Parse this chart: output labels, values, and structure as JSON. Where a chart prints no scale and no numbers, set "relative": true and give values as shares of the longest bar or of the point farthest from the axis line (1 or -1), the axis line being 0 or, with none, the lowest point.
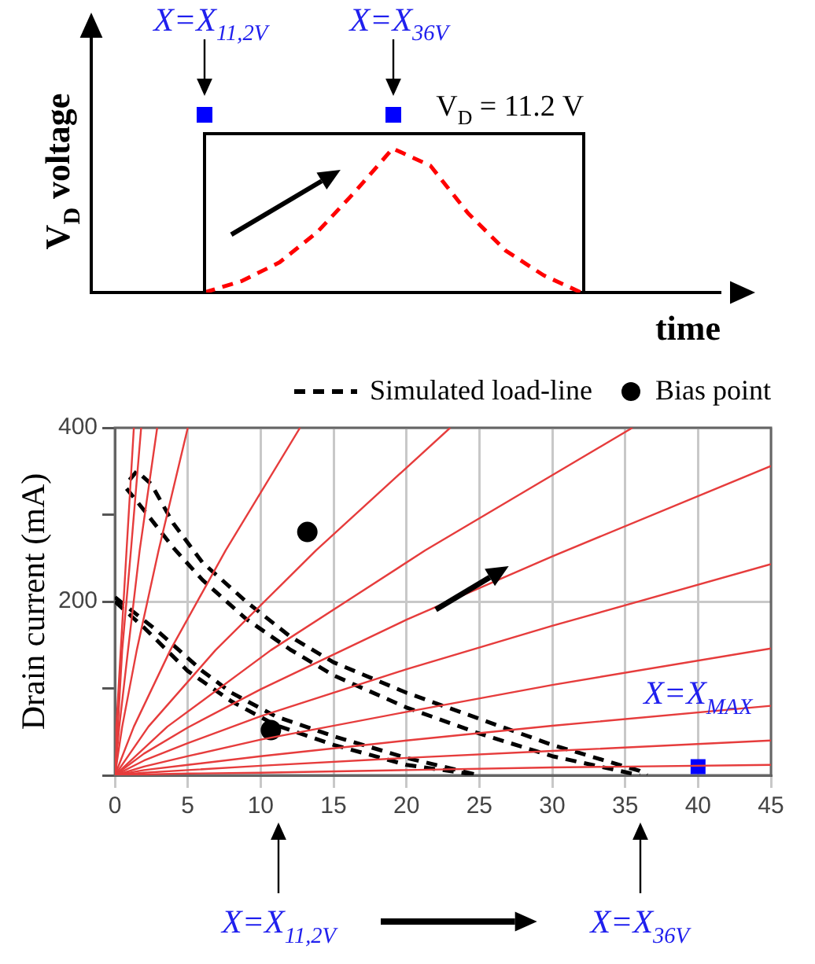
{
  "chart_data": [
    {
      "type": "line",
      "relative": true,
      "ylabel": "V$_{D}$ voltage",
      "xlabel": "time",
      "categories": [
        null,
        null,
        null,
        null,
        null,
        null,
        null,
        null,
        null,
        null,
        null
      ],
      "series": [
        {
          "color": "#ff0000",
          "line_style": "dashed",
          "values": [
            0,
            0.08,
            0.21,
            0.42,
            0.7,
            1,
            0.88,
            0.55,
            0.29,
            0.12,
            0
          ]
        }
      ],
      "annotations": [
        "X=X$_{11,2V}$",
        "X=X$_{36V}$",
        "V$_{D}$ = 11.2 V"
      ]
    },
    {
      "type": "line",
      "ylabel": "Drain current (mA)",
      "xlim": [
        0,
        45
      ],
      "xticks": [
        0,
        5,
        10,
        15,
        20,
        25,
        30,
        35,
        40,
        45
      ],
      "ylim": [
        0,
        400
      ],
      "yticks": [
        {
          "value": 0,
          "label": null
        },
        {
          "value": 100,
          "label": null
        },
        200,
        {
          "value": 300,
          "label": null
        },
        400
      ],
      "grid": true,
      "legend": "top right",
      "series": [
        {
          "color": "#e63c3c",
          "x": [
            0,
            2,
            5,
            10,
            20,
            30,
            45
          ],
          "values": [
            0,
            1,
            2,
            3,
            6,
            9,
            12
          ]
        },
        {
          "color": "#e63c3c",
          "x": [
            0,
            2,
            5,
            10,
            20,
            30,
            45
          ],
          "values": [
            0,
            3,
            6,
            11,
            20,
            28,
            40
          ]
        },
        {
          "color": "#e63c3c",
          "x": [
            0,
            2,
            5,
            10,
            20,
            30,
            45
          ],
          "values": [
            0,
            6,
            12,
            22,
            40,
            57,
            80
          ]
        },
        {
          "color": "#e63c3c",
          "x": [
            0,
            2,
            5,
            10,
            20,
            30,
            45
          ],
          "values": [
            0,
            10,
            22,
            41,
            73,
            104,
            146
          ]
        },
        {
          "color": "#e63c3c",
          "x": [
            0,
            2,
            5,
            10,
            20,
            30,
            45
          ],
          "values": [
            0,
            17,
            37,
            68,
            122,
            172,
            243
          ]
        },
        {
          "color": "#e63c3c",
          "x": [
            0,
            2,
            5,
            10,
            20,
            30,
            45
          ],
          "values": [
            0,
            25,
            55,
            99,
            179,
            252,
            356
          ]
        },
        {
          "color": "#e63c3c",
          "x": [
            0,
            3.6,
            10.7,
            21.3,
            35.5
          ],
          "values": [
            0,
            56,
            144,
            259,
            400
          ]
        },
        {
          "color": "#e63c3c",
          "x": [
            0,
            2.3,
            6.9,
            13.8,
            23
          ],
          "values": [
            0,
            56,
            144,
            259,
            400
          ]
        },
        {
          "color": "#e63c3c",
          "x": [
            0,
            1.3,
            3.8,
            7.6,
            12.7
          ],
          "values": [
            0,
            56,
            144,
            259,
            400
          ]
        },
        {
          "color": "#e63c3c",
          "x": [
            0,
            0.5,
            1.5,
            3,
            5
          ],
          "values": [
            0,
            56,
            144,
            259,
            400
          ]
        },
        {
          "color": "#e63c3c",
          "x": [
            0,
            0.3,
            0.9,
            1.7,
            2.9
          ],
          "values": [
            0,
            56,
            144,
            259,
            400
          ]
        },
        {
          "color": "#e63c3c",
          "x": [
            0,
            0.2,
            0.5,
            1.1,
            1.8
          ],
          "values": [
            0,
            56,
            144,
            259,
            400
          ]
        },
        {
          "color": "#e63c3c",
          "x": [
            0,
            0.1,
            0.4,
            0.8,
            1.3
          ],
          "values": [
            0,
            56,
            144,
            259,
            400
          ]
        },
        {
          "name": "Simulated load-line",
          "color": "#000000",
          "line_style": "dashed",
          "x": [
            0,
            3,
            6,
            8,
            11,
            15,
            20,
            25
          ],
          "values": [
            205,
            165,
            120,
            95,
            68,
            45,
            20,
            0
          ]
        },
        {
          "color": "#000000",
          "line_style": "dashed",
          "x": [
            0,
            2,
            5,
            8,
            11,
            15,
            20,
            25
          ],
          "values": [
            200,
            170,
            120,
            85,
            58,
            35,
            12,
            0
          ]
        },
        {
          "color": "#000000",
          "line_style": "dashed",
          "x": [
            1,
            1.5,
            2.5,
            4,
            6,
            9,
            12,
            15,
            20,
            25,
            30,
            36,
            36.5
          ],
          "values": [
            340,
            350,
            335,
            290,
            245,
            200,
            160,
            130,
            95,
            65,
            35,
            5,
            0
          ]
        },
        {
          "color": "#000000",
          "line_style": "dashed",
          "x": [
            0.8,
            2,
            4,
            6,
            9,
            12,
            15,
            20,
            25,
            30,
            36
          ],
          "values": [
            330,
            305,
            262,
            225,
            180,
            145,
            115,
            78,
            48,
            22,
            0
          ]
        },
        {
          "type": "scatter",
          "name": "Bias point",
          "color": "#000000",
          "marker": "circle",
          "x": [
            13.2,
            10.7
          ],
          "values": [
            280,
            52
          ]
        },
        {
          "type": "scatter",
          "color": "#0000ff",
          "marker": "square",
          "x": [
            40
          ],
          "values": [
            10
          ]
        }
      ],
      "annotations": [
        {
          "text": "X=X$_{MAX}$",
          "x": 40,
          "y": 10
        },
        "X=X$_{11,2V}$",
        "X=X$_{36V}$"
      ]
    }
  ]
}
